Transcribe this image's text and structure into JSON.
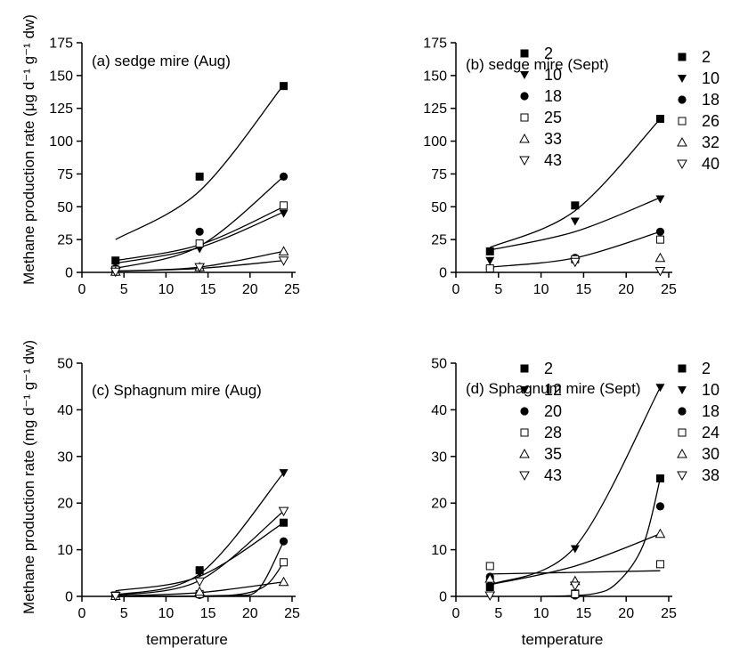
{
  "chart_data": [
    {
      "type": "scatter",
      "title": "(a) sedge mire (Aug)",
      "xlabel": "",
      "ylabel": "Methane production rate (μg d⁻¹ g⁻¹ dw)",
      "xlim": [
        0,
        25
      ],
      "ylim": [
        0,
        175
      ],
      "xticks": [
        0,
        5,
        10,
        15,
        20,
        25
      ],
      "yticks": [
        0,
        25,
        50,
        75,
        100,
        125,
        150,
        175
      ],
      "grid": false,
      "legend_placement": "right",
      "series": [
        {
          "name": "2",
          "marker": "square-filled",
          "x": [
            4,
            14,
            24
          ],
          "y": [
            9,
            73,
            142
          ],
          "fit": {
            "type": "exponential",
            "points": [
              [
                4,
                25
              ],
              [
                14,
                62
              ],
              [
                24,
                143
              ]
            ]
          }
        },
        {
          "name": "10",
          "marker": "triangle-down-filled",
          "x": [
            4,
            14,
            24
          ],
          "y": [
            2,
            18,
            45
          ],
          "fit": {
            "type": "exponential",
            "points": [
              [
                4,
                7
              ],
              [
                14,
                19
              ],
              [
                24,
                46
              ]
            ]
          }
        },
        {
          "name": "18",
          "marker": "circle-filled",
          "x": [
            4,
            14,
            24
          ],
          "y": [
            3,
            31,
            73
          ],
          "fit": {
            "type": "exponential",
            "points": [
              [
                4,
                3
              ],
              [
                14,
                20
              ],
              [
                24,
                73
              ]
            ]
          }
        },
        {
          "name": "25",
          "marker": "square-open",
          "x": [
            4,
            14,
            24
          ],
          "y": [
            2,
            22,
            51
          ],
          "fit": {
            "type": "exponential",
            "points": [
              [
                4,
                9
              ],
              [
                14,
                21
              ],
              [
                24,
                50
              ]
            ]
          }
        },
        {
          "name": "33",
          "marker": "triangle-up-open",
          "x": [
            4,
            14,
            24
          ],
          "y": [
            0.5,
            4,
            16
          ],
          "fit": {
            "type": "exponential",
            "points": [
              [
                4,
                1
              ],
              [
                14,
                4
              ],
              [
                24,
                16
              ]
            ]
          }
        },
        {
          "name": "43",
          "marker": "triangle-down-open",
          "x": [
            4,
            14,
            24
          ],
          "y": [
            0.5,
            4,
            9
          ],
          "fit": {
            "type": "exponential",
            "points": [
              [
                4,
                1
              ],
              [
                14,
                3
              ],
              [
                24,
                9
              ]
            ]
          }
        }
      ]
    },
    {
      "type": "scatter",
      "title": "(b) sedge mire (Sept)",
      "xlabel": "",
      "ylabel": "",
      "xlim": [
        0,
        25
      ],
      "ylim": [
        0,
        175
      ],
      "xticks": [
        0,
        5,
        10,
        15,
        20,
        25
      ],
      "yticks": [
        0,
        25,
        50,
        75,
        100,
        125,
        150,
        175
      ],
      "grid": false,
      "legend_placement": "right",
      "series": [
        {
          "name": "2",
          "marker": "square-filled",
          "x": [
            4,
            14,
            24
          ],
          "y": [
            16,
            51,
            117
          ],
          "fit": {
            "type": "exponential",
            "points": [
              [
                4,
                19
              ],
              [
                14,
                47
              ],
              [
                24,
                117
              ]
            ]
          }
        },
        {
          "name": "10",
          "marker": "triangle-down-filled",
          "x": [
            4,
            14,
            24
          ],
          "y": [
            9,
            39,
            56
          ],
          "fit": {
            "type": "exponential",
            "points": [
              [
                4,
                17
              ],
              [
                14,
                31
              ],
              [
                24,
                57
              ]
            ]
          }
        },
        {
          "name": "18",
          "marker": "circle-filled",
          "x": [
            4,
            14,
            24
          ],
          "y": [
            3,
            11,
            31
          ],
          "fit": {
            "type": "exponential",
            "points": [
              [
                4,
                4
              ],
              [
                14,
                11
              ],
              [
                24,
                31
              ]
            ]
          }
        },
        {
          "name": "26",
          "marker": "square-open",
          "x": [
            4,
            14,
            24
          ],
          "y": [
            3,
            10,
            25
          ],
          "fit": null
        },
        {
          "name": "32",
          "marker": "triangle-up-open",
          "x": [
            24
          ],
          "y": [
            11
          ],
          "fit": null
        },
        {
          "name": "40",
          "marker": "triangle-down-open",
          "x": [
            14,
            24
          ],
          "y": [
            8,
            1
          ],
          "fit": null
        }
      ]
    },
    {
      "type": "scatter",
      "title": "(c) Sphagnum mire (Aug)",
      "xlabel": "temperature",
      "ylabel": "Methane production rate (mg d⁻¹ g⁻¹ dw)",
      "xlim": [
        0,
        25
      ],
      "ylim": [
        0,
        50
      ],
      "xticks": [
        0,
        5,
        10,
        15,
        20,
        25
      ],
      "yticks": [
        0,
        10,
        20,
        30,
        40,
        50
      ],
      "grid": false,
      "legend_placement": "right",
      "series": [
        {
          "name": "2",
          "marker": "square-filled",
          "x": [
            4,
            14,
            24
          ],
          "y": [
            0.2,
            5.6,
            15.8
          ],
          "fit": {
            "type": "exponential",
            "points": [
              [
                4,
                1.2
              ],
              [
                14,
                4.3
              ],
              [
                24,
                15.8
              ]
            ]
          }
        },
        {
          "name": "12",
          "marker": "triangle-down-filled",
          "x": [
            4,
            14,
            24
          ],
          "y": [
            0.1,
            5.0,
            26.5
          ],
          "fit": {
            "type": "exponential",
            "points": [
              [
                4,
                0.3
              ],
              [
                14,
                4.8
              ],
              [
                24,
                26.5
              ]
            ]
          }
        },
        {
          "name": "20",
          "marker": "circle-filled",
          "x": [
            4,
            14,
            24
          ],
          "y": [
            0.1,
            0.3,
            11.8
          ],
          "fit": {
            "type": "exponential",
            "points": [
              [
                4,
                0
              ],
              [
                14,
                0
              ],
              [
                18,
                0.2
              ],
              [
                21,
                1.5
              ],
              [
                24,
                11.8
              ]
            ]
          }
        },
        {
          "name": "28",
          "marker": "square-open",
          "x": [
            4,
            14,
            24
          ],
          "y": [
            0.1,
            0.5,
            7.3
          ],
          "fit": {
            "type": "exponential",
            "points": [
              [
                4,
                0
              ],
              [
                14,
                0.1
              ],
              [
                19,
                0.5
              ],
              [
                22,
                2.5
              ],
              [
                24,
                7.3
              ]
            ]
          }
        },
        {
          "name": "35",
          "marker": "triangle-up-open",
          "x": [
            4,
            14,
            24
          ],
          "y": [
            0.1,
            1.0,
            3.1
          ],
          "fit": {
            "type": "exponential",
            "points": [
              [
                4,
                0.1
              ],
              [
                14,
                0.8
              ],
              [
                24,
                3.1
              ]
            ]
          }
        },
        {
          "name": "43",
          "marker": "triangle-down-open",
          "x": [
            4,
            14,
            24
          ],
          "y": [
            0.1,
            3.2,
            18.3
          ],
          "fit": {
            "type": "exponential",
            "points": [
              [
                4,
                0.2
              ],
              [
                14,
                3.4
              ],
              [
                24,
                18.3
              ]
            ]
          }
        }
      ]
    },
    {
      "type": "scatter",
      "title": "(d) Sphagnum mire (Sept)",
      "xlabel": "temperature",
      "ylabel": "",
      "xlim": [
        0,
        25
      ],
      "ylim": [
        0,
        50
      ],
      "xticks": [
        0,
        5,
        10,
        15,
        20,
        25
      ],
      "yticks": [
        0,
        10,
        20,
        30,
        40,
        50
      ],
      "grid": false,
      "legend_placement": "right",
      "series": [
        {
          "name": "2",
          "marker": "square-filled",
          "x": [
            4,
            14,
            24
          ],
          "y": [
            2.0,
            0.6,
            25.3
          ],
          "fit": {
            "type": "exponential",
            "points": [
              [
                10,
                0
              ],
              [
                16,
                0.5
              ],
              [
                19,
                3
              ],
              [
                22,
                11
              ],
              [
                24,
                25.3
              ]
            ]
          }
        },
        {
          "name": "10",
          "marker": "triangle-down-filled",
          "x": [
            4,
            14,
            24
          ],
          "y": [
            3.0,
            10.2,
            44.8
          ],
          "fit": {
            "type": "exponential",
            "points": [
              [
                4,
                2.5
              ],
              [
                14,
                10.6
              ],
              [
                24,
                44.8
              ]
            ]
          }
        },
        {
          "name": "18",
          "marker": "circle-filled",
          "x": [
            4,
            14,
            24
          ],
          "y": [
            4.2,
            0.2,
            19.3
          ],
          "fit": null
        },
        {
          "name": "24",
          "marker": "square-open",
          "x": [
            4,
            14,
            24
          ],
          "y": [
            6.5,
            0.5,
            6.9
          ],
          "fit": {
            "type": "linear",
            "points": [
              [
                4,
                4.8
              ],
              [
                24,
                5.5
              ]
            ]
          }
        },
        {
          "name": "30",
          "marker": "triangle-up-open",
          "x": [
            4,
            14,
            24
          ],
          "y": [
            3.8,
            3.3,
            13.4
          ],
          "fit": {
            "type": "exponential",
            "points": [
              [
                4,
                2.5
              ],
              [
                14,
                6.5
              ],
              [
                24,
                13.4
              ]
            ]
          }
        },
        {
          "name": "38",
          "marker": "triangle-down-open",
          "x": [
            4,
            14
          ],
          "y": [
            0.2,
            2.3
          ],
          "fit": null
        }
      ]
    }
  ]
}
